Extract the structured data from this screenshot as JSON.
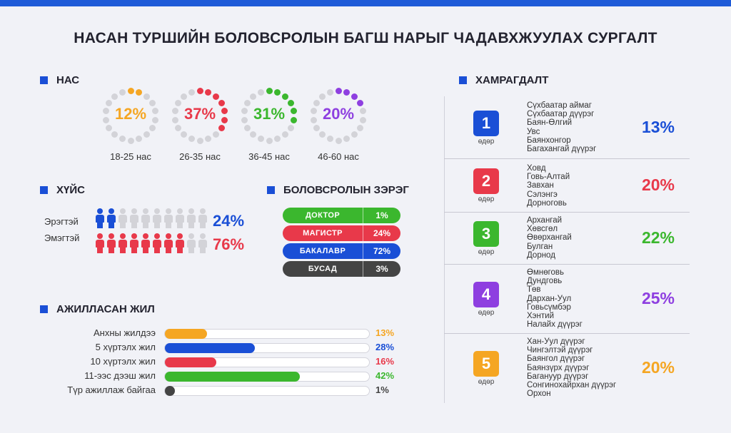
{
  "title": "НАСАН ТУРШИЙН БОЛОВСРОЛЫН БАГШ НАРЫГ ЧАДАВХЖУУЛАХ СУРГАЛТ",
  "age": {
    "heading": "НАС",
    "groups": [
      {
        "label": "18-25 нас",
        "pct": "12%",
        "value": 12,
        "color": "#f5a623"
      },
      {
        "label": "26-35 нас",
        "pct": "37%",
        "value": 37,
        "color": "#e8394a"
      },
      {
        "label": "36-45 нас",
        "pct": "31%",
        "value": 31,
        "color": "#3bb72e"
      },
      {
        "label": "46-60 нас",
        "pct": "20%",
        "value": 20,
        "color": "#8e3fe0"
      }
    ]
  },
  "gender": {
    "heading": "ХҮЙС",
    "male": {
      "label": "Эрэгтэй",
      "pct": "24%",
      "value": 24,
      "color": "#1a4fd6"
    },
    "female": {
      "label": "Эмэгтэй",
      "pct": "76%",
      "value": 76,
      "color": "#e8394a"
    }
  },
  "degree": {
    "heading": "БОЛОВСРОЛЫН ЗЭРЭГ",
    "items": [
      {
        "label": "ДОКТОР",
        "pct": "1%",
        "color": "#3bb72e"
      },
      {
        "label": "МАГИСТР",
        "pct": "24%",
        "color": "#e8394a"
      },
      {
        "label": "БАКАЛАВР",
        "pct": "72%",
        "color": "#1a4fd6"
      },
      {
        "label": "БУСАД",
        "pct": "3%",
        "color": "#444444"
      }
    ]
  },
  "work": {
    "heading": "АЖИЛЛАСАН ЖИЛ",
    "items": [
      {
        "label": "Анхны жилдээ",
        "pct": "13%",
        "value": 13,
        "color": "#f5a623"
      },
      {
        "label": "5 хүртэлх жил",
        "pct": "28%",
        "value": 28,
        "color": "#1a4fd6"
      },
      {
        "label": "10 хүртэлх жил",
        "pct": "16%",
        "value": 16,
        "color": "#e8394a"
      },
      {
        "label": "11-ээс дээш жил",
        "pct": "42%",
        "value": 42,
        "color": "#3bb72e"
      },
      {
        "label": "Түр ажиллаж байгаа",
        "pct": "1%",
        "value": 1,
        "color": "#444444"
      }
    ]
  },
  "coverage": {
    "heading": "ХАМРАГДАЛТ",
    "days": [
      {
        "num": "1",
        "sub": "өдөр",
        "pct": "13%",
        "color": "#1a4fd6",
        "aimags": [
          "Сүхбаатар аймаг",
          "Сүхбаатар дүүрэг",
          "Баян-Өлгий",
          "Увс",
          "Баянхонгор",
          "Багахангай дүүрэг"
        ]
      },
      {
        "num": "2",
        "sub": "өдөр",
        "pct": "20%",
        "color": "#e8394a",
        "aimags": [
          "Ховд",
          "Говь-Алтай",
          "Завхан",
          "Сэлэнгэ",
          "Дорноговь"
        ]
      },
      {
        "num": "3",
        "sub": "өдөр",
        "pct": "22%",
        "color": "#3bb72e",
        "aimags": [
          "Архангай",
          "Хөвсгөл",
          "Өвөрхангай",
          "Булган",
          "Дорнод"
        ]
      },
      {
        "num": "4",
        "sub": "өдөр",
        "pct": "25%",
        "color": "#8e3fe0",
        "aimags": [
          "Өмнөговь",
          "Дундговь",
          "Төв",
          "Дархан-Уул",
          "Говьсүмбэр",
          "Хэнтий",
          "Налайх дүүрэг"
        ]
      },
      {
        "num": "5",
        "sub": "өдөр",
        "pct": "20%",
        "color": "#f5a623",
        "aimags": [
          "Хан-Уул дүүрэг",
          "Чингэлтэй дүүрэг",
          "Баянгол дүүрэг",
          "Баянзүрх дүүрэг",
          "Багануур дүүрэг",
          "Сонгинохайрхан дүүрэг",
          "Орхон"
        ]
      }
    ]
  }
}
